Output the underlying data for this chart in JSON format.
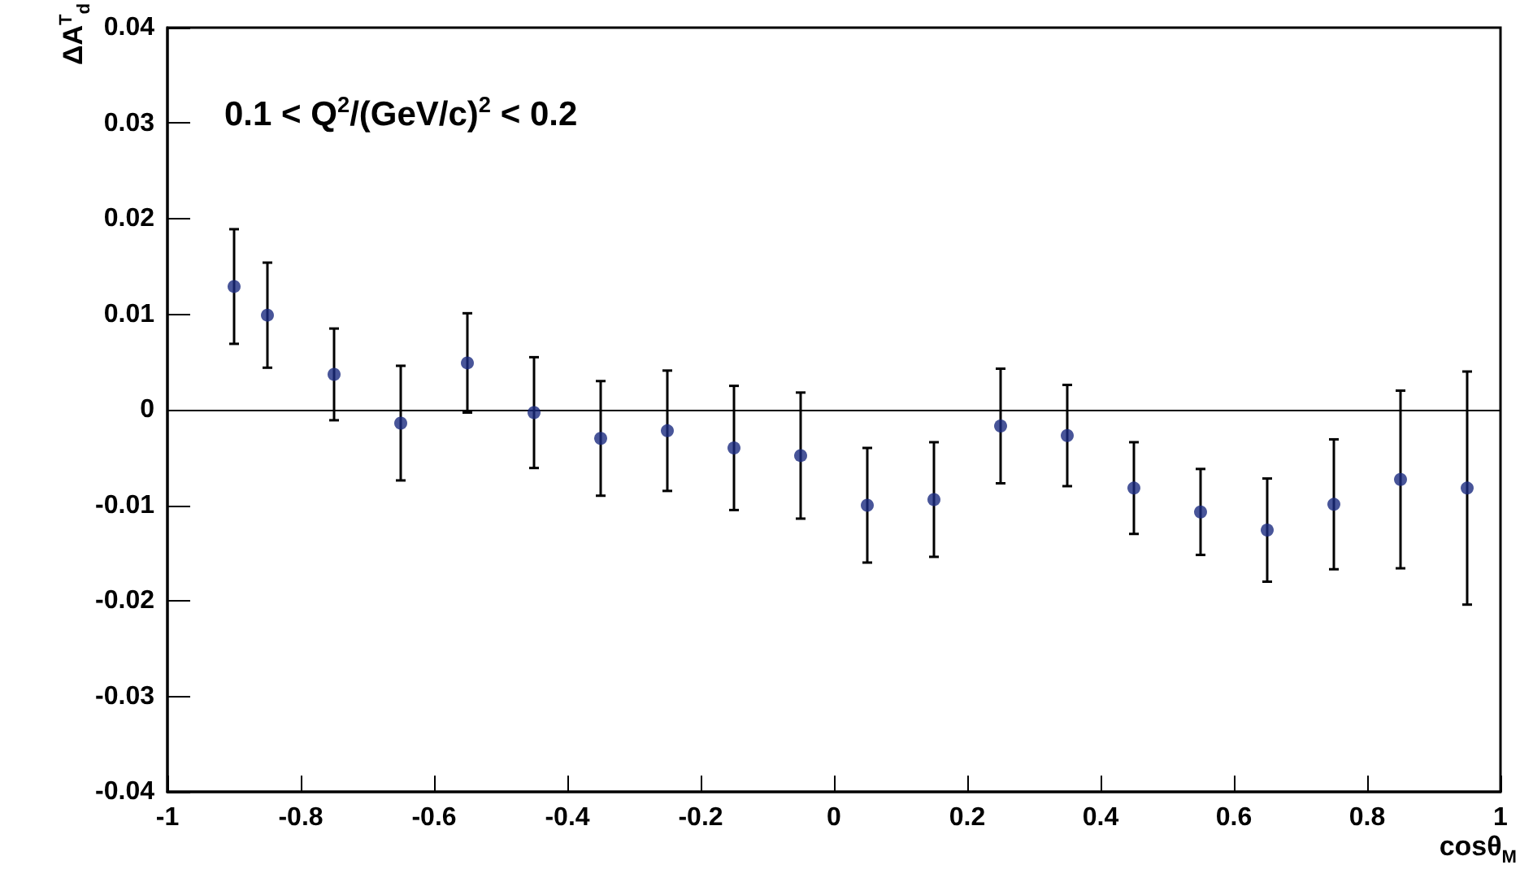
{
  "chart_data": {
    "type": "scatter",
    "xlabel": "cosθ$_{M}$",
    "ylabel": "ΔA$^{T}$$_{d}$",
    "annotations": [
      "0.1 < Q$^{2}$/(GeV/c)$^{2}$ < 0.2"
    ],
    "x": [
      -0.9,
      -0.85,
      -0.75,
      -0.65,
      -0.55,
      -0.45,
      -0.35,
      -0.25,
      -0.15,
      -0.05,
      0.05,
      0.15,
      0.25,
      0.35,
      0.45,
      0.55,
      0.65,
      0.75,
      0.85,
      0.95
    ],
    "series": [
      {
        "color": "#1a2a80",
        "values": [
          0.0129,
          0.0099,
          0.0037,
          -0.0014,
          0.0049,
          -0.0003,
          -0.003,
          -0.0022,
          -0.004,
          -0.0048,
          -0.01,
          -0.0094,
          -0.0017,
          -0.0027,
          -0.0082,
          -0.0107,
          -0.0126,
          -0.0099,
          -0.0073,
          -0.0082
        ],
        "errors": [
          0.006,
          0.0055,
          0.0048,
          0.006,
          0.0052,
          0.0058,
          0.006,
          0.0063,
          0.0065,
          0.0066,
          0.006,
          0.006,
          0.006,
          0.0053,
          0.0048,
          0.0045,
          0.0054,
          0.0068,
          0.0093,
          0.0122
        ]
      }
    ],
    "xlim": [
      -1,
      1
    ],
    "xticks": [
      -1,
      -0.8,
      -0.6,
      -0.4,
      -0.2,
      0,
      0.2,
      0.4,
      0.6,
      0.8,
      1
    ],
    "ylim": [
      -0.04,
      0.04
    ],
    "yticks": [
      -0.04,
      -0.03,
      -0.02,
      -0.01,
      0,
      0.01,
      0.02,
      0.03,
      0.04
    ],
    "ref_lines": [
      {
        "axis": "y",
        "value": 0,
        "color": "#000000"
      }
    ],
    "grid": false,
    "marker": "circle"
  }
}
